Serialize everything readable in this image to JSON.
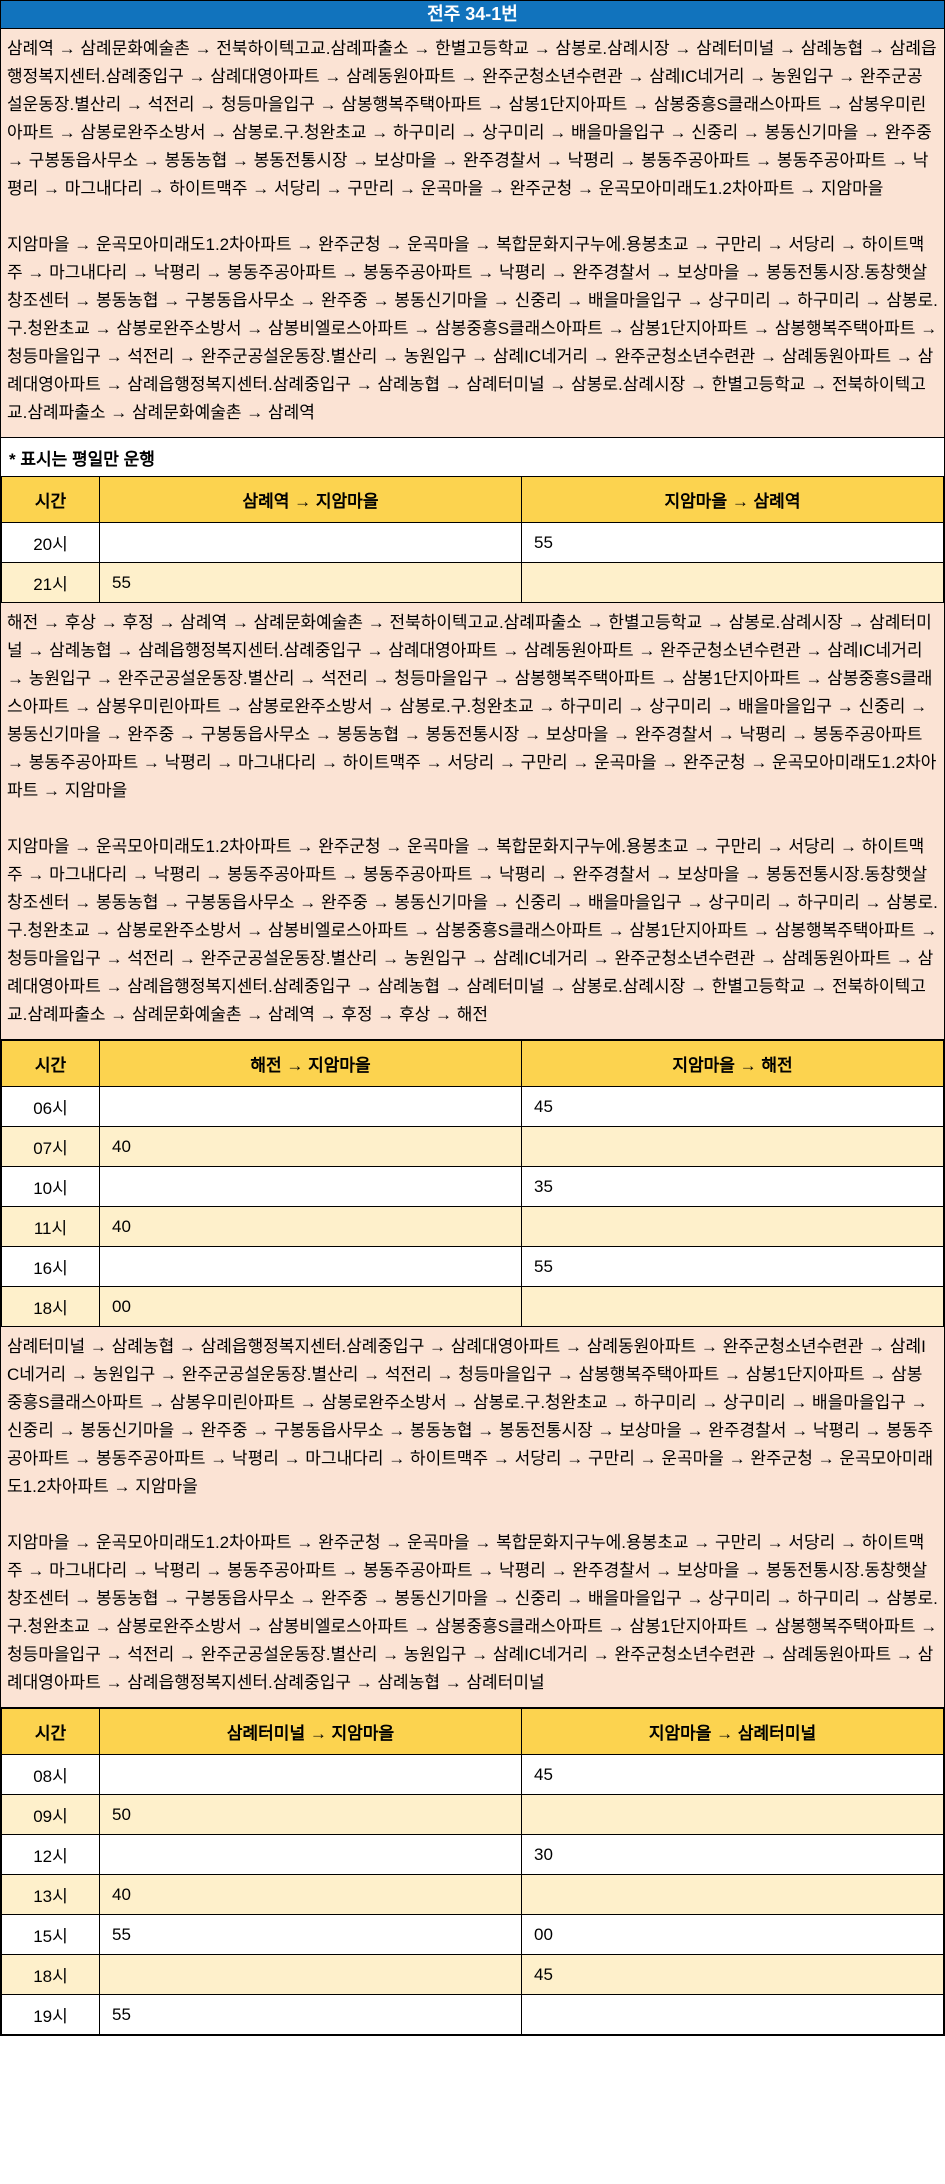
{
  "title": "전주 34-1번",
  "note": "* 표시는 평일만 운행",
  "colors": {
    "title_bg": "#1173BD",
    "title_text": "#FFFFFF",
    "route_block_bg": "#FBE3D4",
    "table_header_bg": "#FCD34F",
    "row_alt_bg": "#FEF0CB",
    "border": "#000000"
  },
  "sections": [
    {
      "routes": [
        "삼례역 → 삼례문화예술촌 → 전북하이텍고교.삼례파출소 → 한별고등학교 → 삼봉로.삼례시장 → 삼례터미널 → 삼례농협 → 삼례읍행정복지센터.삼례중입구 → 삼례대영아파트 → 삼례동원아파트 → 완주군청소년수련관 → 삼례IC네거리 → 농원입구 → 완주군공설운동장.별산리 → 석전리 → 청등마을입구 → 삼봉행복주택아파트 → 삼봉1단지아파트 → 삼봉중흥S클래스아파트 → 삼봉우미린아파트 → 삼봉로완주소방서 → 삼봉로.구.청완초교 → 하구미리 → 상구미리 → 배을마을입구 → 신중리 → 봉동신기마을 → 완주중 → 구봉동읍사무소 → 봉동농협 → 봉동전통시장 → 보상마을 → 완주경찰서 → 낙평리 → 봉동주공아파트 → 봉동주공아파트 → 낙평리 → 마그내다리 → 하이트맥주 → 서당리 → 구만리 → 운곡마을 → 완주군청 → 운곡모아미래도1.2차아파트 → 지암마을",
        "지암마을 → 운곡모아미래도1.2차아파트 → 완주군청 → 운곡마을 → 복합문화지구누에.용봉초교 → 구만리 → 서당리 → 하이트맥주 → 마그내다리 → 낙평리 → 봉동주공아파트 → 봉동주공아파트 → 낙평리 → 완주경찰서 → 보상마을 → 봉동전통시장.동창햇살창조센터 → 봉동농협 → 구봉동읍사무소 → 완주중 → 봉동신기마을 → 신중리 → 배을마을입구 → 상구미리 → 하구미리 → 삼봉로.구.청완초교 → 삼봉로완주소방서 → 삼봉비엘로스아파트 → 삼봉중흥S클래스아파트 → 삼봉1단지아파트 → 삼봉행복주택아파트 → 청등마을입구 → 석전리 → 완주군공설운동장.별산리 → 농원입구 → 삼례IC네거리 → 완주군청소년수련관 → 삼례동원아파트 → 삼례대영아파트 → 삼례읍행정복지센터.삼례중입구 → 삼례농협 → 삼례터미널 → 삼봉로.삼례시장 → 한별고등학교 → 전북하이텍고교.삼례파출소 → 삼례문화예술촌 → 삼례역"
      ],
      "table": {
        "headers": [
          "시간",
          "삼례역 → 지암마을",
          "지암마을 → 삼례역"
        ],
        "rows": [
          {
            "time": "20시",
            "out": "",
            "back": "55"
          },
          {
            "time": "21시",
            "out": "55",
            "back": ""
          }
        ]
      }
    },
    {
      "routes": [
        "해전 → 후상 → 후정 → 삼례역 → 삼례문화예술촌 → 전북하이텍고교.삼례파출소 → 한별고등학교 → 삼봉로.삼례시장 → 삼례터미널 → 삼례농협 → 삼례읍행정복지센터.삼례중입구 → 삼례대영아파트 → 삼례동원아파트 → 완주군청소년수련관 → 삼례IC네거리 → 농원입구 → 완주군공설운동장.별산리 → 석전리 → 청등마을입구 → 삼봉행복주택아파트 → 삼봉1단지아파트 → 삼봉중흥S클래스아파트 → 삼봉우미린아파트 → 삼봉로완주소방서 → 삼봉로.구.청완초교 → 하구미리 → 상구미리 → 배을마을입구 → 신중리 → 봉동신기마을 → 완주중 → 구봉동읍사무소 → 봉동농협 → 봉동전통시장 → 보상마을 → 완주경찰서 → 낙평리 → 봉동주공아파트 → 봉동주공아파트 → 낙평리 → 마그내다리 → 하이트맥주 → 서당리 → 구만리 → 운곡마을 → 완주군청 → 운곡모아미래도1.2차아파트 → 지암마을",
        "지암마을 → 운곡모아미래도1.2차아파트 → 완주군청 → 운곡마을 → 복합문화지구누에.용봉초교 → 구만리 → 서당리 → 하이트맥주 → 마그내다리 → 낙평리 → 봉동주공아파트 → 봉동주공아파트 → 낙평리 → 완주경찰서 → 보상마을 → 봉동전통시장.동창햇살창조센터 → 봉동농협 → 구봉동읍사무소 → 완주중 → 봉동신기마을 → 신중리 → 배을마을입구 → 상구미리 → 하구미리 → 삼봉로.구.청완초교 → 삼봉로완주소방서 → 삼봉비엘로스아파트 → 삼봉중흥S클래스아파트 → 삼봉1단지아파트 → 삼봉행복주택아파트 → 청등마을입구 → 석전리 → 완주군공설운동장.별산리 → 농원입구 → 삼례IC네거리 → 완주군청소년수련관 → 삼례동원아파트 → 삼례대영아파트 → 삼례읍행정복지센터.삼례중입구 → 삼례농협 → 삼례터미널 → 삼봉로.삼례시장 → 한별고등학교 → 전북하이텍고교.삼례파출소 → 삼례문화예술촌 → 삼례역 → 후정 → 후상 → 해전"
      ],
      "table": {
        "headers": [
          "시간",
          "해전 → 지암마을",
          "지암마을 → 해전"
        ],
        "rows": [
          {
            "time": "06시",
            "out": "",
            "back": "45"
          },
          {
            "time": "07시",
            "out": "40",
            "back": ""
          },
          {
            "time": "10시",
            "out": "",
            "back": "35"
          },
          {
            "time": "11시",
            "out": "40",
            "back": ""
          },
          {
            "time": "16시",
            "out": "",
            "back": "55"
          },
          {
            "time": "18시",
            "out": "00",
            "back": ""
          }
        ]
      }
    },
    {
      "routes": [
        "삼례터미널 → 삼례농협 → 삼례읍행정복지센터.삼례중입구 → 삼례대영아파트 → 삼례동원아파트 → 완주군청소년수련관 → 삼례IC네거리 → 농원입구 → 완주군공설운동장.별산리 → 석전리 → 청등마을입구 → 삼봉행복주택아파트 → 삼봉1단지아파트 → 삼봉중흥S클래스아파트 → 삼봉우미린아파트 → 삼봉로완주소방서 → 삼봉로.구.청완초교 → 하구미리 → 상구미리 → 배을마을입구 → 신중리 → 봉동신기마을 → 완주중 → 구봉동읍사무소 → 봉동농협 → 봉동전통시장 → 보상마을 → 완주경찰서 → 낙평리 → 봉동주공아파트 → 봉동주공아파트 → 낙평리 → 마그내다리 → 하이트맥주 → 서당리 → 구만리 → 운곡마을 → 완주군청 → 운곡모아미래도1.2차아파트 → 지암마을",
        "지암마을 → 운곡모아미래도1.2차아파트 → 완주군청 → 운곡마을 → 복합문화지구누에.용봉초교 → 구만리 → 서당리 → 하이트맥주 → 마그내다리 → 낙평리 → 봉동주공아파트 → 봉동주공아파트 → 낙평리 → 완주경찰서 → 보상마을 → 봉동전통시장.동창햇살창조센터 → 봉동농협 → 구봉동읍사무소 → 완주중 → 봉동신기마을 → 신중리 → 배을마을입구 → 상구미리 → 하구미리 → 삼봉로.구.청완초교 → 삼봉로완주소방서 → 삼봉비엘로스아파트 → 삼봉중흥S클래스아파트 → 삼봉1단지아파트 → 삼봉행복주택아파트 → 청등마을입구 → 석전리 → 완주군공설운동장.별산리 → 농원입구 → 삼례IC네거리 → 완주군청소년수련관 → 삼례동원아파트 → 삼례대영아파트 → 삼례읍행정복지센터.삼례중입구 → 삼례농협 → 삼례터미널"
      ],
      "table": {
        "headers": [
          "시간",
          "삼례터미널 → 지암마을",
          "지암마을 → 삼례터미널"
        ],
        "rows": [
          {
            "time": "08시",
            "out": "",
            "back": "45"
          },
          {
            "time": "09시",
            "out": "50",
            "back": ""
          },
          {
            "time": "12시",
            "out": "",
            "back": "30"
          },
          {
            "time": "13시",
            "out": "40",
            "back": ""
          },
          {
            "time": "15시",
            "out": "55",
            "back": "00"
          },
          {
            "time": "18시",
            "out": "",
            "back": "45"
          },
          {
            "time": "19시",
            "out": "55",
            "back": ""
          }
        ]
      }
    }
  ]
}
